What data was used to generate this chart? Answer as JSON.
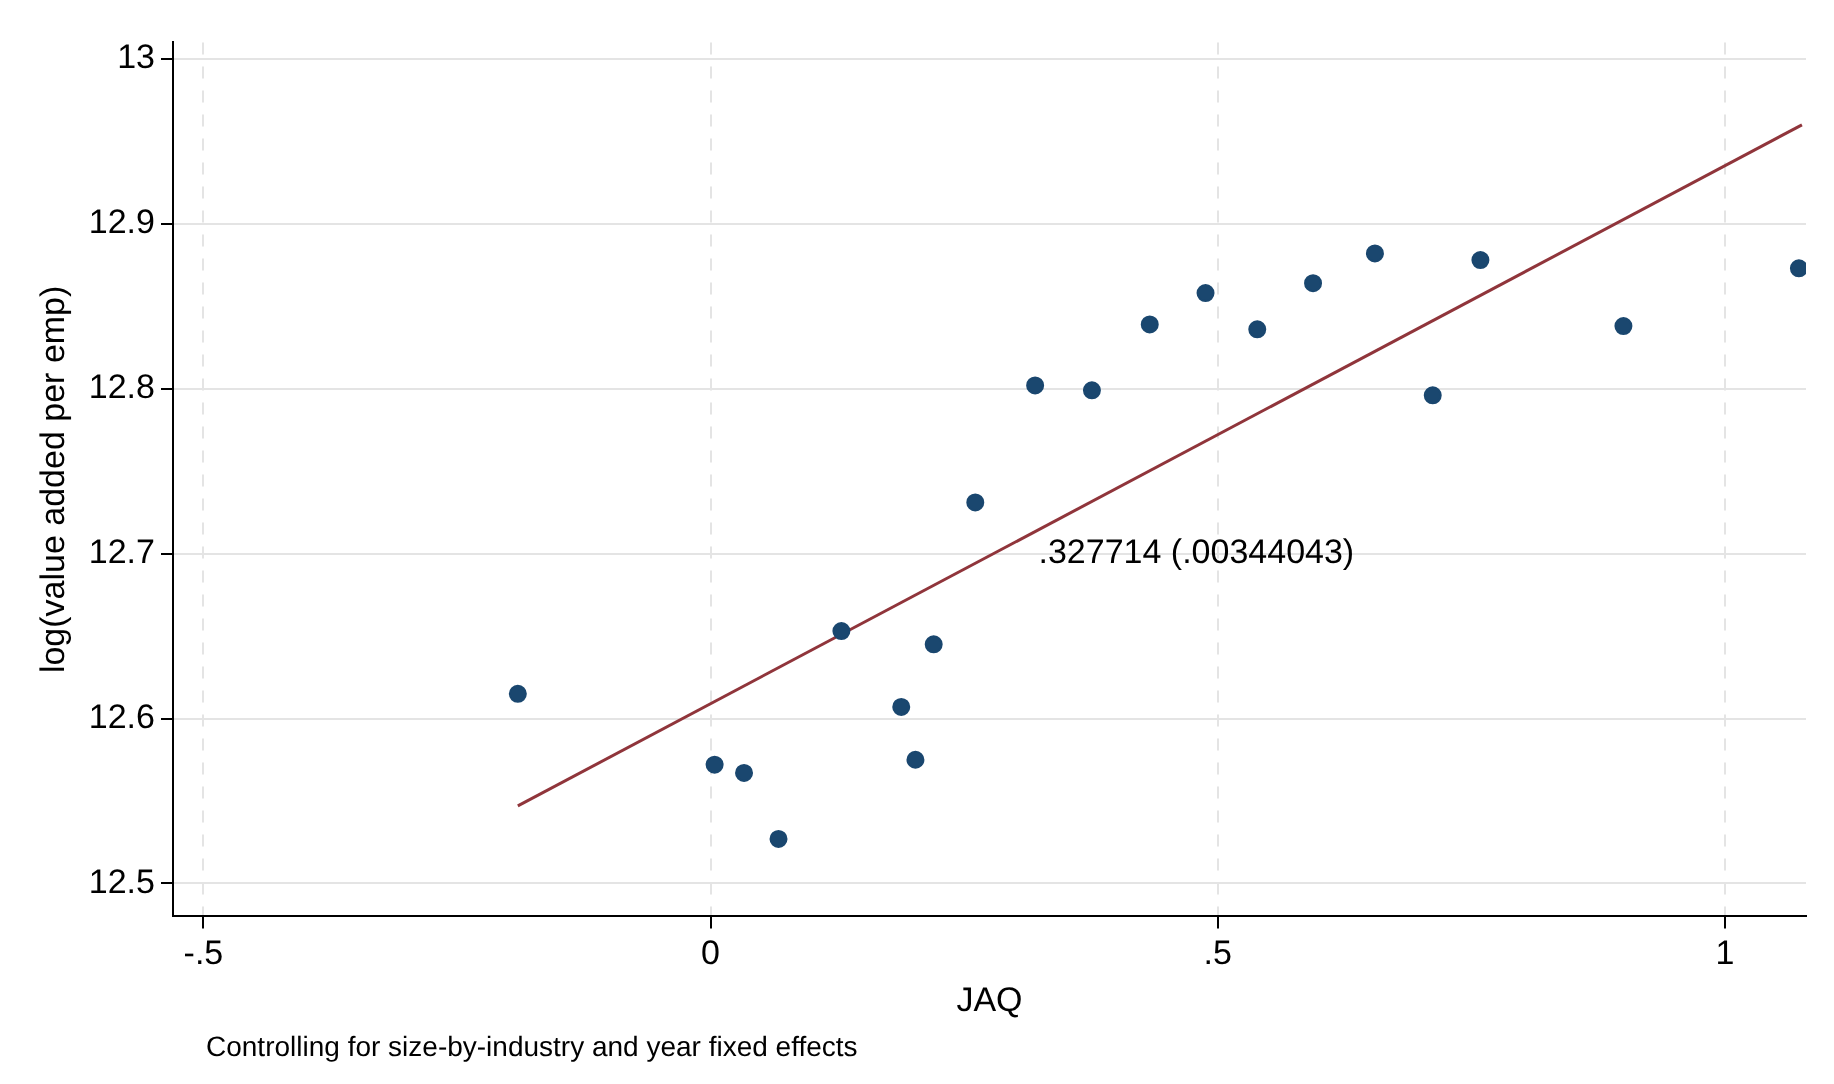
{
  "chart_data": {
    "type": "scatter",
    "xlabel": "JAQ",
    "ylabel": "log(value added per emp)",
    "annotations": [
      ".327714 (.00344043)",
      "Controlling for size-by-industry and year fixed effects"
    ],
    "xlim": [
      -0.53,
      1.08
    ],
    "ylim": [
      12.48,
      13.01
    ],
    "xticks": [
      {
        "value": -0.5,
        "label": "-.5"
      },
      0,
      {
        "value": 0.5,
        "label": ".5"
      },
      1
    ],
    "yticks": [
      12.5,
      12.6,
      12.7,
      12.8,
      12.9,
      13
    ],
    "grid": true,
    "legend": false,
    "series": [
      {
        "marker": "circle",
        "color": "#1a476f",
        "x": [
          -0.19,
          0.004,
          0.033,
          0.067,
          0.129,
          0.188,
          0.202,
          0.22,
          0.261,
          0.32,
          0.376,
          0.433,
          0.488,
          0.539,
          0.594,
          0.655,
          0.712,
          0.759,
          0.9,
          1.073
        ],
        "values": [
          12.615,
          12.572,
          12.567,
          12.527,
          12.653,
          12.607,
          12.575,
          12.645,
          12.731,
          12.802,
          12.799,
          12.839,
          12.858,
          12.836,
          12.864,
          12.882,
          12.796,
          12.878,
          12.838,
          12.873
        ]
      },
      {
        "type": "line",
        "color": "#90353b",
        "x": [
          -0.19,
          1.076
        ],
        "values": [
          12.547,
          12.96
        ]
      }
    ]
  }
}
